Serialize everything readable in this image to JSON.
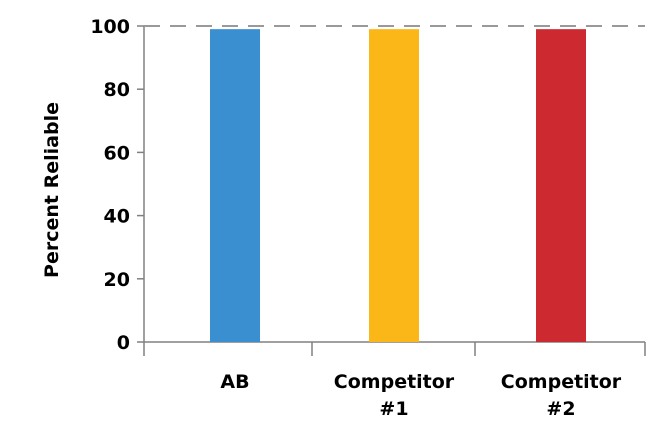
{
  "chart_data": {
    "type": "bar",
    "title": "",
    "xlabel": "",
    "ylabel": "Percent Reliable",
    "ylim": [
      0,
      100
    ],
    "yticks": [
      0,
      20,
      40,
      60,
      80,
      100
    ],
    "categories": [
      [
        "AB"
      ],
      [
        "Competitor",
        "#1"
      ],
      [
        "Competitor",
        "#2"
      ]
    ],
    "values": [
      99,
      99,
      99
    ],
    "colors": [
      "#3A8FD0",
      "#FBB717",
      "#CC2A30"
    ],
    "reference_line": {
      "value": 100,
      "style": "dashed",
      "color": "#999999"
    },
    "grid": false,
    "legend": "none"
  }
}
